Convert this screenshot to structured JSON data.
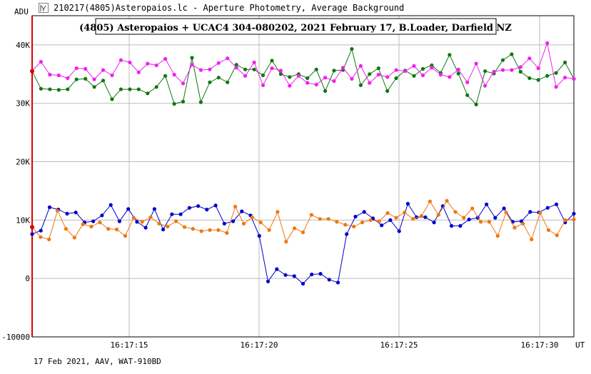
{
  "window": {
    "title": "210217(4805)Asteropaios.lc - Aperture Photometry, Average Background",
    "icon": "lightcurve-app-icon"
  },
  "footer": {
    "info": "17 Feb 2021, AAV, WAT-910BD"
  },
  "chart_data": {
    "type": "line",
    "title": "(4805) Asteropaios + UCAC4 304-080202,  2021 February 17,  B.Loader, Darfield NZ",
    "ylabel": "ADU",
    "xlabel": "UT",
    "ylim": [
      -10000,
      45000
    ],
    "y_ticks": [
      {
        "value": 40000,
        "label": "40K"
      },
      {
        "value": 30000,
        "label": "30K"
      },
      {
        "value": 20000,
        "label": "20K"
      },
      {
        "value": 10000,
        "label": "10K"
      },
      {
        "value": 0,
        "label": "0"
      },
      {
        "value": -10000,
        "label": "-10000"
      }
    ],
    "x_ticks": [
      "16:17:15",
      "16:17:20",
      "16:17:25",
      "16:17:30"
    ],
    "grid": true,
    "colors": {
      "target": "#0000cc",
      "target_background": "#ee7711",
      "comparison": "#117711",
      "comparison_background": "#ee22ee",
      "marker_line": "#dd0000",
      "grid": "#bbbbbb"
    },
    "series": [
      {
        "key": "green",
        "color": "#117711",
        "values": [
          35500,
          32500,
          32400,
          32300,
          32400,
          34100,
          34200,
          32800,
          33900,
          30700,
          32400,
          32400,
          32400,
          31700,
          32800,
          34700,
          29900,
          30300,
          37800,
          30200,
          33600,
          34400,
          33600,
          36600,
          35800,
          35800,
          34800,
          37300,
          35000,
          34500,
          35000,
          34300,
          35800,
          32100,
          35600,
          35700,
          39300,
          33100,
          35000,
          36000,
          32100,
          34300,
          35600,
          34700,
          35900,
          36500,
          35200,
          38300,
          35100,
          31400,
          29800,
          35500,
          35100,
          37400,
          38400,
          35400,
          34300,
          34000,
          34700,
          35200,
          37000,
          34200
        ]
      },
      {
        "key": "magenta",
        "color": "#ee22ee",
        "values": [
          35600,
          37100,
          34900,
          34800,
          34300,
          36000,
          35900,
          34100,
          35700,
          34800,
          37400,
          37000,
          35300,
          36800,
          36500,
          37600,
          34900,
          33400,
          36600,
          35700,
          35800,
          36900,
          37700,
          36100,
          34700,
          37000,
          33100,
          36000,
          35600,
          33000,
          34700,
          33500,
          33200,
          34400,
          33800,
          36100,
          34200,
          36400,
          33500,
          34900,
          34500,
          35700,
          35500,
          36400,
          34800,
          36100,
          34900,
          34500,
          35800,
          33600,
          36800,
          33000,
          35400,
          35700,
          35700,
          36200,
          37700,
          36000,
          40300,
          32800,
          34400,
          34200
        ]
      },
      {
        "key": "blue",
        "color": "#0000cc",
        "values": [
          7600,
          8200,
          12200,
          11800,
          11100,
          11300,
          9600,
          9800,
          10800,
          12600,
          9800,
          11900,
          9700,
          8700,
          11900,
          8400,
          11000,
          11000,
          12100,
          12400,
          11800,
          12500,
          9400,
          9800,
          11500,
          10800,
          7300,
          -500,
          1600,
          600,
          400,
          -900,
          700,
          800,
          -200,
          -700,
          7600,
          10600,
          11400,
          10300,
          9100,
          10000,
          8100,
          12800,
          10500,
          10500,
          9600,
          12400,
          9000,
          9000,
          10100,
          10400,
          12700,
          10400,
          12000,
          9700,
          9800,
          11400,
          11300,
          12100,
          12700,
          9600,
          11100
        ]
      },
      {
        "key": "orange",
        "color": "#ee7711",
        "values": [
          8800,
          7100,
          6700,
          11600,
          8500,
          7000,
          9300,
          8900,
          9600,
          8500,
          8400,
          7300,
          10400,
          9700,
          10500,
          9400,
          8900,
          9800,
          8800,
          8500,
          8100,
          8300,
          8300,
          7800,
          12300,
          9400,
          10500,
          9600,
          8300,
          11400,
          6300,
          8600,
          7900,
          10900,
          10200,
          10200,
          9700,
          9200,
          8900,
          9600,
          10000,
          9800,
          11200,
          10400,
          11300,
          10200,
          10700,
          13200,
          10900,
          13300,
          11400,
          10400,
          12000,
          9700,
          9700,
          7300,
          11300,
          8700,
          9400,
          6700,
          11200,
          8300,
          7400,
          10000,
          10100
        ]
      }
    ]
  }
}
